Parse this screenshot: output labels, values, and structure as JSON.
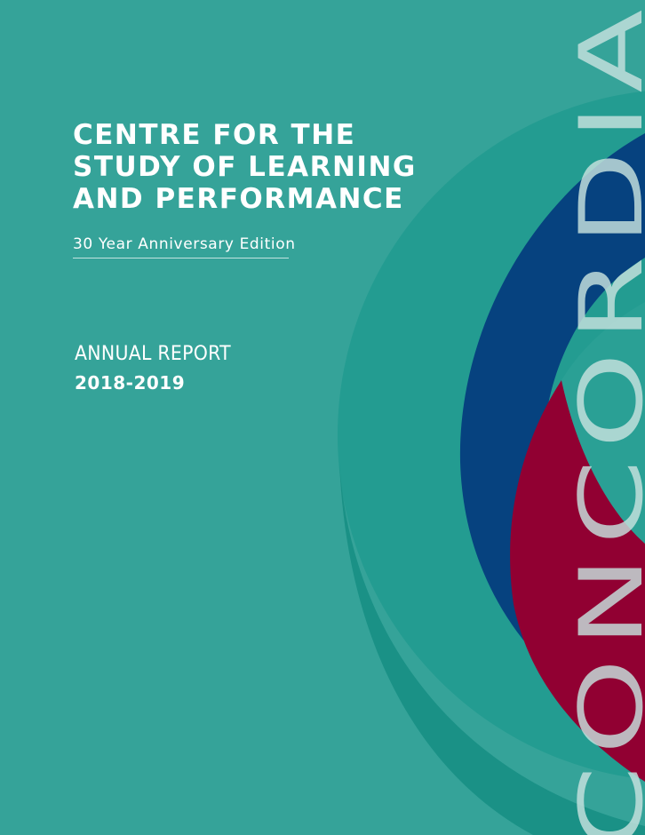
{
  "cover": {
    "title_lines": [
      "CENTRE FOR THE",
      "STUDY OF LEARNING",
      "AND PERFORMANCE"
    ],
    "edition": "30 Year Anniversary Edition",
    "report_label": "ANNUAL REPORT",
    "report_year": "2018-2019",
    "wordmark": "CONCORDIA"
  },
  "colors": {
    "background": "#35a399",
    "teal_dark": "#1f9489",
    "blue": "#06427f",
    "red": "#910032",
    "wordmark": "#c7e2de"
  }
}
